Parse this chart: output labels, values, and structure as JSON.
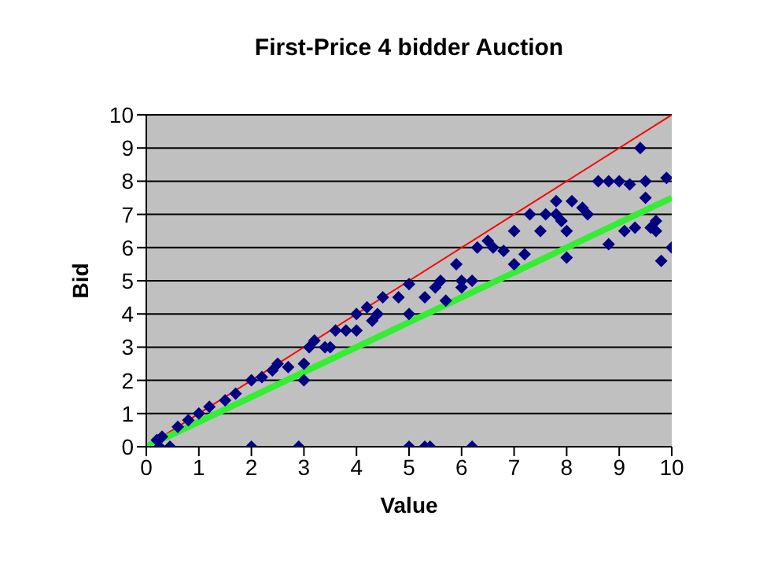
{
  "chart_data": {
    "type": "scatter",
    "title": "First-Price 4 bidder Auction",
    "xlabel": "Value",
    "ylabel": "Bid",
    "xlim": [
      0,
      10
    ],
    "xticks": [
      0,
      1,
      2,
      3,
      4,
      5,
      6,
      7,
      8,
      9,
      10
    ],
    "ylim": [
      0,
      10
    ],
    "yticks": [
      0,
      1,
      2,
      3,
      4,
      5,
      6,
      7,
      8,
      9,
      10
    ],
    "grid": "y",
    "legend": false,
    "marker": "diamond",
    "series": [
      {
        "color": "#000080",
        "x": [
          0.2,
          0.25,
          0.45,
          2.0,
          2.9,
          5.0,
          5.3,
          5.4,
          6.2,
          0.3,
          0.6,
          0.8,
          1.0,
          1.2,
          1.5,
          1.7,
          2.0,
          2.2,
          2.4,
          2.5,
          2.7,
          3.0,
          3.0,
          3.1,
          3.2,
          3.4,
          3.5,
          3.6,
          3.8,
          4.0,
          4.0,
          4.2,
          4.3,
          4.4,
          4.5,
          4.8,
          5.0,
          5.0,
          5.3,
          5.5,
          5.6,
          5.7,
          5.9,
          6.0,
          6.0,
          6.2,
          6.3,
          6.5,
          6.6,
          6.8,
          7.0,
          7.0,
          7.2,
          7.3,
          7.5,
          7.6,
          7.8,
          7.8,
          7.9,
          8.0,
          8.0,
          8.1,
          8.3,
          8.4,
          8.6,
          8.8,
          8.8,
          9.0,
          9.1,
          9.2,
          9.3,
          9.4,
          9.5,
          9.5,
          9.6,
          9.7,
          9.7,
          9.8,
          9.9,
          10.0
        ],
        "values": [
          0.2,
          0.0,
          0.0,
          0.0,
          0.0,
          0.0,
          0.0,
          0.0,
          0.0,
          0.3,
          0.6,
          0.8,
          1.0,
          1.2,
          1.4,
          1.6,
          2.0,
          2.1,
          2.3,
          2.5,
          2.4,
          2.0,
          2.5,
          3.0,
          3.2,
          3.0,
          3.0,
          3.5,
          3.5,
          3.5,
          4.0,
          4.2,
          3.8,
          4.0,
          4.5,
          4.5,
          4.0,
          4.9,
          4.5,
          4.8,
          5.0,
          4.4,
          5.5,
          5.0,
          4.8,
          5.0,
          6.0,
          6.2,
          6.0,
          5.9,
          5.5,
          6.5,
          5.8,
          7.0,
          6.5,
          7.0,
          7.0,
          7.4,
          6.8,
          5.7,
          6.5,
          7.4,
          7.2,
          7.0,
          8.0,
          8.0,
          6.1,
          8.0,
          6.5,
          7.9,
          6.6,
          9.0,
          7.5,
          8.0,
          6.6,
          6.8,
          6.5,
          5.6,
          8.1,
          6.0
        ]
      },
      {
        "type": "line",
        "color": "#ff0000",
        "marker": "none",
        "x": [
          0,
          10
        ],
        "values": [
          0,
          10
        ]
      },
      {
        "type": "line",
        "color": "#33ee33",
        "marker": "none",
        "x": [
          0,
          10
        ],
        "values": [
          0,
          7.5
        ]
      }
    ]
  }
}
